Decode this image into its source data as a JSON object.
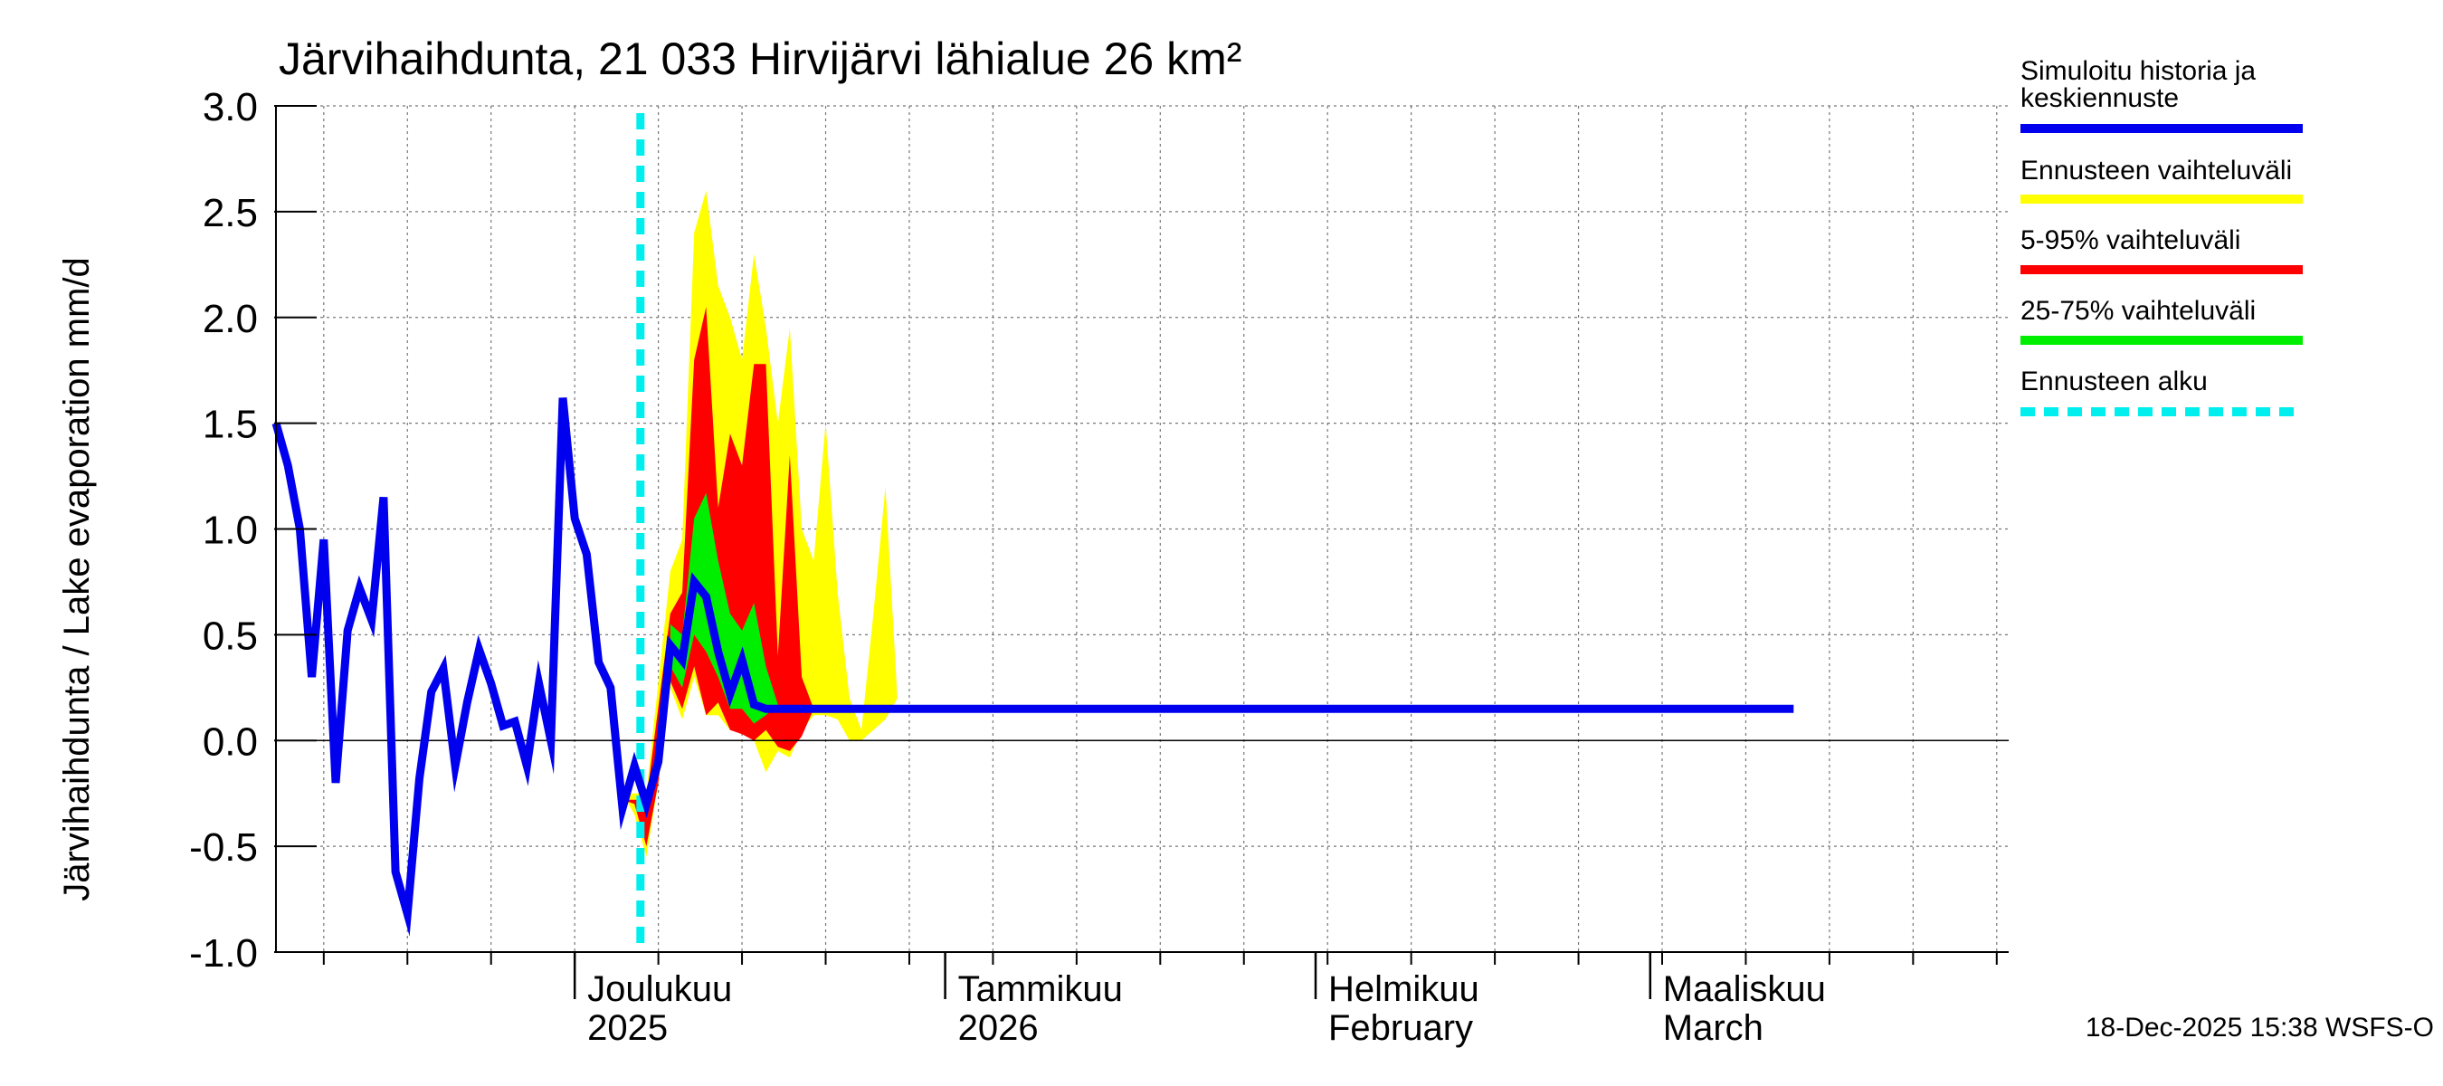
{
  "chart_data": {
    "type": "area",
    "title": "Järvihaihdunta, 21 033 Hirvijärvi lähialue 26 km²",
    "ylabel": "Järvihaihdunta / Lake evaporation   mm/d",
    "ylim": [
      -1.0,
      3.0
    ],
    "yticks": [
      "-1.0",
      "-0.5",
      "0.0",
      "0.5",
      "1.0",
      "1.5",
      "2.0",
      "2.5",
      "3.0"
    ],
    "x_axis": {
      "start": "2025-11-06",
      "end": "2026-03-31",
      "months": [
        {
          "line1": "Joulukuu",
          "line2": "2025",
          "date": "2025-12-01"
        },
        {
          "line1": "Tammikuu",
          "line2": "2026",
          "date": "2026-01-01"
        },
        {
          "line1": "Helmikuu",
          "line2": "February",
          "date": "2026-02-01"
        },
        {
          "line1": "Maaliskuu",
          "line2": "March",
          "date": "2026-03-01"
        }
      ]
    },
    "forecast_start_day": 30.5,
    "history": {
      "name": "Simuloitu historia ja keskiennuste",
      "color": "#0000ee",
      "points": [
        [
          0,
          1.5
        ],
        [
          1,
          1.3
        ],
        [
          2,
          1.0
        ],
        [
          3,
          0.3
        ],
        [
          4,
          0.95
        ],
        [
          5,
          -0.2
        ],
        [
          6,
          0.52
        ],
        [
          7,
          0.72
        ],
        [
          8,
          0.57
        ],
        [
          9,
          1.15
        ],
        [
          10,
          -0.62
        ],
        [
          11,
          -0.82
        ],
        [
          12,
          -0.18
        ],
        [
          13,
          0.23
        ],
        [
          14,
          0.34
        ],
        [
          15,
          -0.12
        ],
        [
          16,
          0.18
        ],
        [
          17,
          0.43
        ],
        [
          18,
          0.27
        ],
        [
          19,
          0.07
        ],
        [
          20,
          0.09
        ],
        [
          21,
          -0.12
        ],
        [
          22,
          0.27
        ],
        [
          23,
          0.0
        ],
        [
          24,
          1.62
        ],
        [
          25,
          1.05
        ],
        [
          26,
          0.88
        ],
        [
          27,
          0.37
        ],
        [
          28,
          0.25
        ],
        [
          29,
          -0.32
        ],
        [
          30,
          -0.12
        ],
        [
          31,
          -0.3
        ],
        [
          32,
          -0.1
        ],
        [
          33,
          0.45
        ],
        [
          34,
          0.38
        ],
        [
          35,
          0.75
        ],
        [
          36,
          0.68
        ],
        [
          37,
          0.42
        ],
        [
          38,
          0.22
        ],
        [
          39,
          0.38
        ],
        [
          40,
          0.17
        ],
        [
          41,
          0.15
        ],
        [
          60,
          0.15
        ],
        [
          127,
          0.15
        ]
      ]
    },
    "bands": [
      {
        "name": "Ennusteen vaihteluväli",
        "color": "#ffff00",
        "upper": [
          [
            29,
            -0.25
          ],
          [
            31,
            -0.25
          ],
          [
            33,
            0.8
          ],
          [
            34,
            0.95
          ],
          [
            35,
            2.4
          ],
          [
            36,
            2.6
          ],
          [
            37,
            2.15
          ],
          [
            38,
            2.0
          ],
          [
            39,
            1.8
          ],
          [
            40,
            2.3
          ],
          [
            41,
            1.95
          ],
          [
            42,
            1.5
          ],
          [
            43,
            1.95
          ],
          [
            44,
            1.0
          ],
          [
            45,
            0.85
          ],
          [
            46,
            1.5
          ],
          [
            47,
            0.7
          ],
          [
            48,
            0.2
          ],
          [
            49,
            0.05
          ],
          [
            50,
            0.6
          ],
          [
            51,
            1.2
          ],
          [
            52,
            0.2
          ]
        ],
        "lower": [
          [
            52,
            0.2
          ],
          [
            51,
            0.1
          ],
          [
            50,
            0.05
          ],
          [
            49,
            0.0
          ],
          [
            48,
            0.0
          ],
          [
            47,
            0.1
          ],
          [
            46,
            0.12
          ],
          [
            45,
            0.12
          ],
          [
            44,
            0.05
          ],
          [
            43,
            -0.08
          ],
          [
            42,
            -0.05
          ],
          [
            41,
            -0.15
          ],
          [
            40,
            0.0
          ],
          [
            39,
            0.05
          ],
          [
            38,
            0.05
          ],
          [
            37,
            0.12
          ],
          [
            36,
            0.12
          ],
          [
            35,
            0.3
          ],
          [
            34,
            0.1
          ],
          [
            33,
            0.25
          ],
          [
            32,
            -0.2
          ],
          [
            31,
            -0.55
          ],
          [
            30,
            -0.35
          ],
          [
            29,
            -0.25
          ]
        ]
      },
      {
        "name": "5-95% vaihteluväli",
        "color": "#ff0000",
        "upper": [
          [
            29,
            -0.28
          ],
          [
            31,
            -0.28
          ],
          [
            33,
            0.6
          ],
          [
            34,
            0.7
          ],
          [
            35,
            1.8
          ],
          [
            36,
            2.05
          ],
          [
            37,
            1.1
          ],
          [
            38,
            1.45
          ],
          [
            39,
            1.3
          ],
          [
            40,
            1.78
          ],
          [
            41,
            1.78
          ],
          [
            42,
            0.4
          ],
          [
            43,
            1.35
          ],
          [
            44,
            0.3
          ],
          [
            45,
            0.15
          ]
        ],
        "lower": [
          [
            45,
            0.15
          ],
          [
            44,
            0.02
          ],
          [
            43,
            -0.05
          ],
          [
            42,
            -0.03
          ],
          [
            41,
            0.05
          ],
          [
            40,
            0.0
          ],
          [
            39,
            0.03
          ],
          [
            38,
            0.05
          ],
          [
            37,
            0.18
          ],
          [
            36,
            0.12
          ],
          [
            35,
            0.35
          ],
          [
            34,
            0.15
          ],
          [
            33,
            0.28
          ],
          [
            32,
            -0.2
          ],
          [
            31,
            -0.5
          ],
          [
            30,
            -0.3
          ],
          [
            29,
            -0.28
          ]
        ]
      },
      {
        "name": "25-75% vaihteluväli",
        "color": "#00ee00",
        "upper": [
          [
            33,
            0.55
          ],
          [
            34,
            0.5
          ],
          [
            35,
            1.05
          ],
          [
            36,
            1.17
          ],
          [
            37,
            0.85
          ],
          [
            38,
            0.6
          ],
          [
            39,
            0.52
          ],
          [
            40,
            0.65
          ],
          [
            41,
            0.35
          ],
          [
            42,
            0.17
          ]
        ],
        "lower": [
          [
            42,
            0.17
          ],
          [
            41,
            0.12
          ],
          [
            40,
            0.08
          ],
          [
            39,
            0.15
          ],
          [
            38,
            0.15
          ],
          [
            37,
            0.3
          ],
          [
            36,
            0.42
          ],
          [
            35,
            0.5
          ],
          [
            34,
            0.25
          ],
          [
            33,
            0.35
          ]
        ]
      }
    ],
    "legend": [
      {
        "label": "Simuloitu historia ja",
        "label2": "keskiennuste",
        "color": "#0000ee",
        "style": "solid"
      },
      {
        "label": "Ennusteen vaihteluväli",
        "color": "#ffff00",
        "style": "solid"
      },
      {
        "label": "5-95% vaihteluväli",
        "color": "#ff0000",
        "style": "solid"
      },
      {
        "label": "25-75% vaihteluväli",
        "color": "#00ee00",
        "style": "solid"
      },
      {
        "label": "Ennusteen alku",
        "color": "#00eeee",
        "style": "dashed"
      }
    ],
    "grid": true
  },
  "footer": {
    "timestamp": "18-Dec-2025 15:38 WSFS-O"
  }
}
